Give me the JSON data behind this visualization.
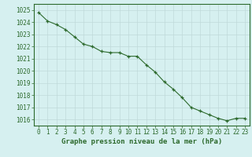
{
  "x": [
    0,
    1,
    2,
    3,
    4,
    5,
    6,
    7,
    8,
    9,
    10,
    11,
    12,
    13,
    14,
    15,
    16,
    17,
    18,
    19,
    20,
    21,
    22,
    23
  ],
  "y": [
    1024.8,
    1024.1,
    1023.8,
    1023.4,
    1022.8,
    1022.2,
    1022.0,
    1021.6,
    1021.5,
    1021.5,
    1021.2,
    1021.2,
    1020.5,
    1019.9,
    1019.1,
    1018.5,
    1017.8,
    1017.0,
    1016.7,
    1016.4,
    1016.1,
    1015.9,
    1016.1,
    1016.1
  ],
  "line_color": "#2d6a2d",
  "marker": "+",
  "marker_color": "#2d6a2d",
  "bg_color": "#d6f0f0",
  "grid_color": "#c0dada",
  "tick_label_color": "#2d6a2d",
  "xlabel": "Graphe pression niveau de la mer (hPa)",
  "ylim": [
    1015.5,
    1025.5
  ],
  "yticks": [
    1016,
    1017,
    1018,
    1019,
    1020,
    1021,
    1022,
    1023,
    1024,
    1025
  ],
  "xlim": [
    -0.5,
    23.5
  ],
  "xticks": [
    0,
    1,
    2,
    3,
    4,
    5,
    6,
    7,
    8,
    9,
    10,
    11,
    12,
    13,
    14,
    15,
    16,
    17,
    18,
    19,
    20,
    21,
    22,
    23
  ],
  "border_color": "#2d6a2d",
  "xlabel_color": "#2d6a2d"
}
